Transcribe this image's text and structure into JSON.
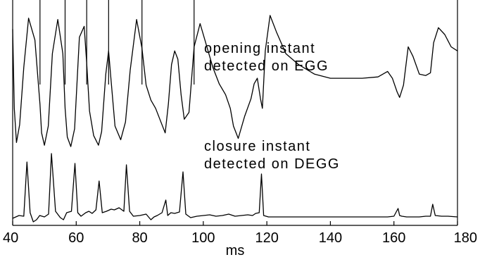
{
  "chart_data": {
    "type": "line",
    "xlabel": "ms",
    "ylabel": "",
    "title": "",
    "xlim": [
      40,
      180
    ],
    "xticks": [
      40,
      60,
      80,
      100,
      120,
      140,
      160,
      180
    ],
    "grid": false,
    "annotations": [
      [
        "opening instant",
        "detected on EGG"
      ],
      [
        "closure instant",
        "detected on DEGG"
      ]
    ],
    "opening_markers_ms": [
      48.6,
      56.5,
      63.3,
      70.2,
      80.7,
      97.1
    ],
    "series": [
      {
        "x": [
          40,
          40.5,
          41.2,
          42.2,
          43.5,
          45.0,
          47.0,
          48.6,
          49.1,
          50.0,
          51.2,
          52.5,
          54.2,
          55.8,
          56.5,
          57.2,
          58.3,
          59.5,
          61.0,
          62.5,
          63.3,
          64.2,
          65.5,
          67.0,
          68.0,
          69.3,
          70.2,
          71.0,
          72.2,
          74.0,
          75.5,
          77.0,
          79.0,
          80.7,
          82.0,
          83.5,
          85.0,
          86.5,
          88.0,
          89.0,
          90.0,
          91.0,
          92.0,
          93.0,
          94.0,
          95.5,
          97.1,
          99.0,
          101.0,
          103.0,
          105.0,
          107.0,
          108.5,
          109.5,
          111.0,
          113.0,
          115.0,
          116.0,
          117.0,
          118.0,
          118.6,
          119.5,
          121.0,
          123.0,
          126.0,
          130.0,
          135.0,
          140.0,
          145.0,
          150.0,
          155.0,
          158.0,
          159.5,
          161.0,
          161.8,
          163.0,
          164.5,
          166.0,
          168.0,
          170.0,
          171.5,
          172.5,
          174.0,
          176.0,
          178.0,
          180.0
        ],
        "y": [
          0.88,
          0.3,
          0.05,
          0.18,
          0.6,
          0.96,
          0.8,
          0.33,
          0.12,
          0.03,
          0.17,
          0.7,
          0.95,
          0.7,
          0.3,
          0.09,
          0.02,
          0.15,
          0.82,
          0.9,
          0.63,
          0.28,
          0.1,
          0.03,
          0.13,
          0.55,
          0.72,
          0.5,
          0.17,
          0.07,
          0.2,
          0.58,
          0.95,
          0.74,
          0.47,
          0.36,
          0.3,
          0.21,
          0.12,
          0.33,
          0.62,
          0.72,
          0.66,
          0.4,
          0.22,
          0.27,
          0.75,
          0.92,
          0.76,
          0.6,
          0.48,
          0.4,
          0.3,
          0.17,
          0.08,
          0.24,
          0.37,
          0.48,
          0.52,
          0.37,
          0.3,
          0.72,
          0.98,
          0.86,
          0.7,
          0.62,
          0.55,
          0.52,
          0.52,
          0.52,
          0.53,
          0.57,
          0.52,
          0.42,
          0.38,
          0.47,
          0.75,
          0.68,
          0.55,
          0.54,
          0.56,
          0.78,
          0.89,
          0.84,
          0.75,
          0.72
        ]
      },
      {
        "x": [
          40,
          42.0,
          43.5,
          44.5,
          45.5,
          46.5,
          47.5,
          48.5,
          50.0,
          51.3,
          52.2,
          53.5,
          55.0,
          56.0,
          57.0,
          58.5,
          59.6,
          60.5,
          61.5,
          63.0,
          64.0,
          65.0,
          66.2,
          67.2,
          68.2,
          69.5,
          71.0,
          72.0,
          73.5,
          75.0,
          75.8,
          76.8,
          78.0,
          80.0,
          82.0,
          83.5,
          84.5,
          85.5,
          87.0,
          88.2,
          88.8,
          89.8,
          91.0,
          92.5,
          93.6,
          94.5,
          96.0,
          98.0,
          100.0,
          102.0,
          104.0,
          106.0,
          108.0,
          110.0,
          112.0,
          114.0,
          115.5,
          116.5,
          117.6,
          118.3,
          119.0,
          120.5,
          123.0,
          126.0,
          130.0,
          135.0,
          140.0,
          145.0,
          150.0,
          155.0,
          158.0,
          160.0,
          161.3,
          161.8,
          162.5,
          164.0,
          166.0,
          168.0,
          170.0,
          171.5,
          172.2,
          173.0,
          175.0,
          177.0,
          180.0
        ],
        "y": [
          0.02,
          0.06,
          0.05,
          0.82,
          0.1,
          -0.03,
          0.0,
          0.06,
          0.04,
          0.08,
          0.94,
          0.12,
          0.03,
          0.0,
          0.1,
          0.12,
          0.8,
          0.1,
          0.05,
          0.1,
          0.12,
          0.09,
          0.14,
          0.55,
          0.1,
          0.12,
          0.15,
          0.14,
          0.17,
          0.12,
          0.78,
          0.12,
          0.05,
          0.06,
          0.08,
          0.0,
          0.04,
          0.06,
          0.1,
          0.28,
          0.06,
          0.1,
          0.09,
          0.11,
          0.68,
          0.08,
          0.03,
          0.05,
          0.06,
          0.07,
          0.05,
          0.06,
          0.08,
          0.05,
          0.06,
          0.07,
          0.06,
          0.09,
          0.1,
          0.65,
          0.06,
          0.04,
          0.04,
          0.04,
          0.04,
          0.04,
          0.04,
          0.04,
          0.04,
          0.04,
          0.04,
          0.05,
          0.16,
          0.06,
          0.05,
          0.04,
          0.04,
          0.04,
          0.05,
          0.05,
          0.22,
          0.06,
          0.05,
          0.05,
          0.04
        ]
      }
    ]
  }
}
